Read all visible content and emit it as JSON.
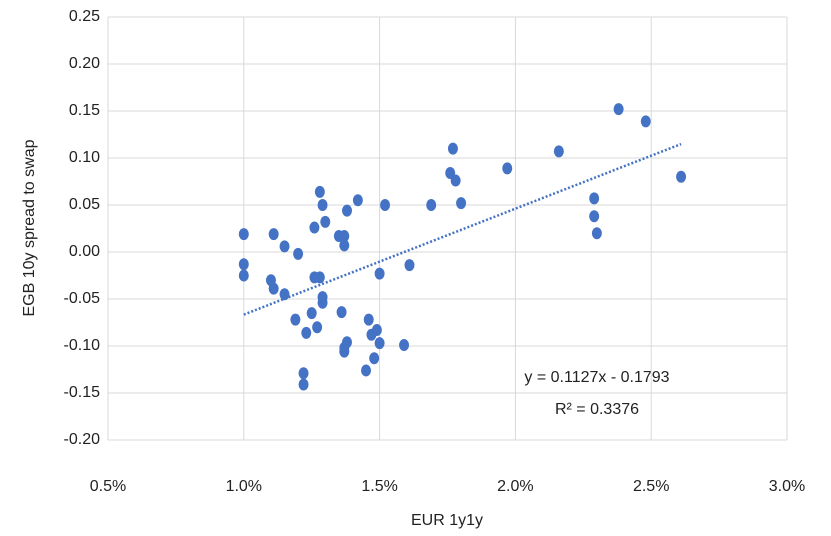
{
  "chart_data": {
    "type": "scatter",
    "x_label": "EUR 1y1y",
    "y_label": "EGB 10y spread to swap",
    "color": "#4472c4",
    "grid": true,
    "xlim": [
      0.5,
      3.0
    ],
    "ylim": [
      -0.2,
      0.25
    ],
    "xticks": [
      {
        "value": 0.5,
        "label": "0.5%"
      },
      {
        "value": 1.0,
        "label": "1.0%"
      },
      {
        "value": 1.5,
        "label": "1.5%"
      },
      {
        "value": 2.0,
        "label": "2.0%"
      },
      {
        "value": 2.5,
        "label": "2.5%"
      },
      {
        "value": 3.0,
        "label": "3.0%"
      }
    ],
    "yticks": [
      0.25,
      {
        "value": 0.2,
        "label": "0.20"
      },
      0.15,
      {
        "value": 0.1,
        "label": "0.10"
      },
      0.05,
      {
        "value": 0,
        "label": "0.00"
      },
      -0.05,
      {
        "value": -0.1,
        "label": "-0.10"
      },
      -0.15,
      {
        "value": -0.2,
        "label": "-0.20"
      }
    ],
    "x": [
      1.0,
      1.0,
      1.0,
      1.11,
      1.1,
      1.11,
      1.15,
      1.15,
      1.2,
      1.19,
      1.22,
      1.22,
      1.23,
      1.25,
      1.26,
      1.26,
      1.27,
      1.28,
      1.29,
      1.28,
      1.29,
      1.29,
      1.3,
      1.35,
      1.37,
      1.37,
      1.36,
      1.38,
      1.42,
      1.38,
      1.37,
      1.37,
      1.46,
      1.47,
      1.5,
      1.49,
      1.5,
      1.48,
      1.45,
      1.52,
      1.59,
      1.61,
      1.69,
      1.76,
      1.77,
      1.78,
      1.8,
      1.97,
      2.16,
      2.29,
      2.29,
      2.3,
      2.38,
      2.48,
      2.61
    ],
    "y": [
      0.019,
      -0.013,
      -0.025,
      0.019,
      -0.03,
      -0.039,
      0.006,
      -0.045,
      -0.002,
      -0.072,
      -0.129,
      -0.141,
      -0.086,
      -0.065,
      0.026,
      -0.027,
      -0.08,
      0.064,
      0.05,
      -0.027,
      -0.048,
      -0.054,
      0.032,
      0.017,
      0.017,
      0.007,
      -0.064,
      0.044,
      0.055,
      -0.096,
      -0.106,
      -0.102,
      -0.072,
      -0.088,
      -0.023,
      -0.083,
      -0.097,
      -0.113,
      -0.126,
      0.05,
      -0.099,
      -0.014,
      0.05,
      0.084,
      0.11,
      0.076,
      0.052,
      0.089,
      0.107,
      0.057,
      0.038,
      0.02,
      0.152,
      0.139,
      0.08
    ],
    "trendline": {
      "slope": 0.1127,
      "intercept": -0.1793,
      "color": "#4472c4"
    },
    "annotations": [
      "y = 0.1127x - 0.1793",
      "R² = 0.3376"
    ]
  }
}
